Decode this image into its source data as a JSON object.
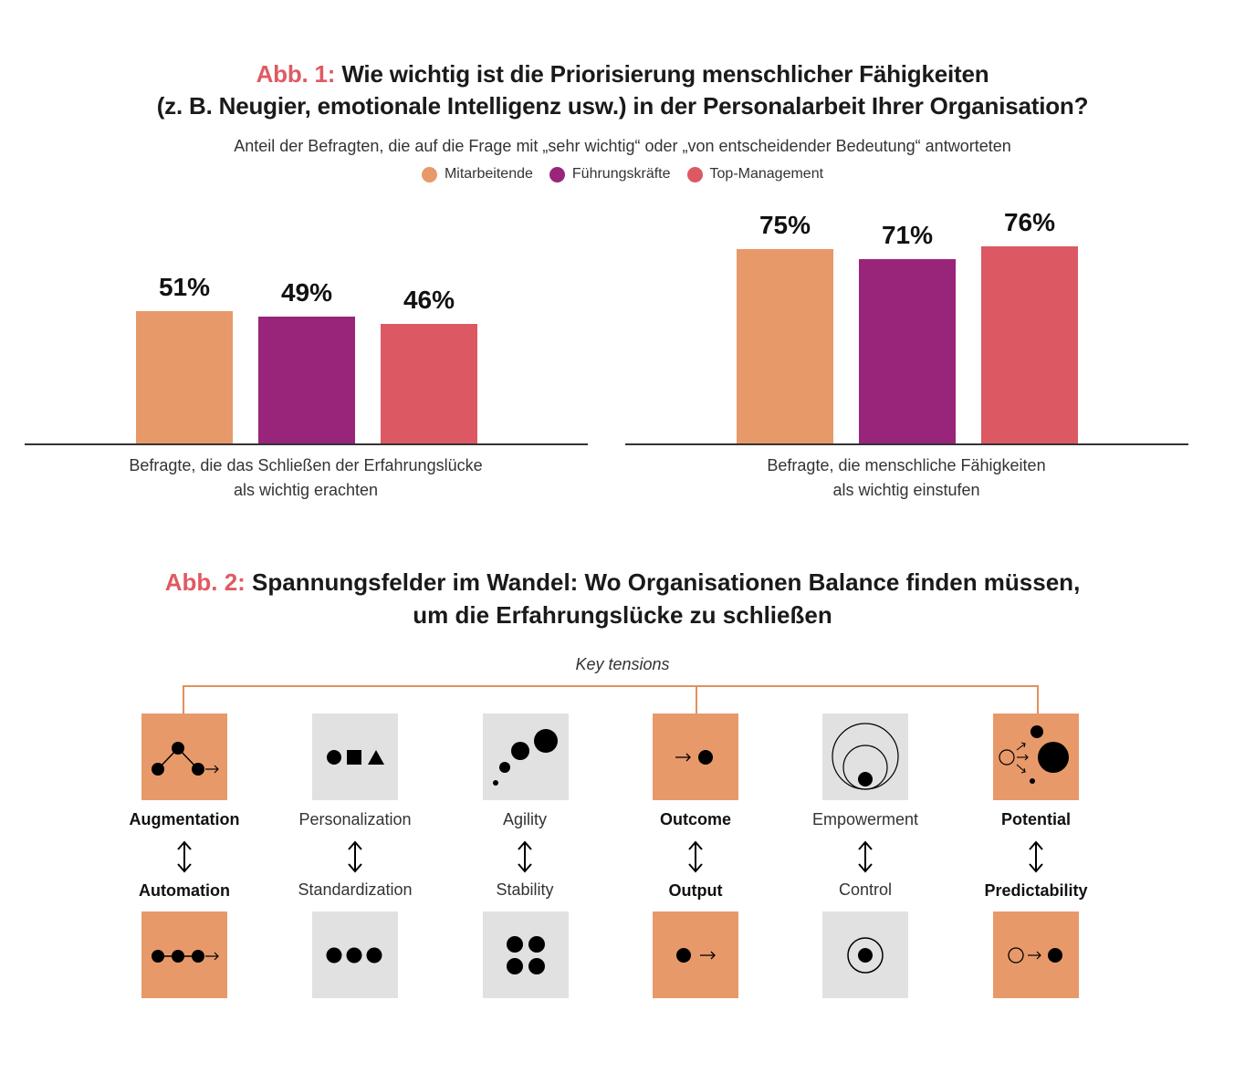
{
  "fig1": {
    "tag": "Abb. 1:",
    "title_line1": "Wie wichtig ist die Priorisierung menschlicher Fähigkeiten",
    "title_line2": "(z. B. Neugier, emotionale Intelligenz usw.) in der Personalarbeit Ihrer Organisation?",
    "subtitle": "Anteil der Befragten, die auf die Frage mit „sehr wichtig“ oder „von entscheidender Bedeutung“ antworteten",
    "legend": [
      {
        "label": "Mitarbeitende",
        "color": "#e8996a"
      },
      {
        "label": "Führungskräfte",
        "color": "#99257a"
      },
      {
        "label": "Top-Management",
        "color": "#dc5964"
      }
    ]
  },
  "chart_data": {
    "type": "bar",
    "title": "Wie wichtig ist die Priorisierung menschlicher Fähigkeiten (z. B. Neugier, emotionale Intelligenz usw.) in der Personalarbeit Ihrer Organisation?",
    "categories": [
      "Befragte, die das Schließen der Erfahrungslücke als wichtig erachten",
      "Befragte, die menschliche Fähigkeiten als wichtig einstufen"
    ],
    "category_lines": [
      [
        "Befragte, die das Schließen der Erfahrungslücke",
        "als wichtig erachten"
      ],
      [
        "Befragte, die menschliche Fähigkeiten",
        "als wichtig einstufen"
      ]
    ],
    "series": [
      {
        "name": "Mitarbeitende",
        "values": [
          51,
          75
        ],
        "labels": [
          "51%",
          "75%"
        ]
      },
      {
        "name": "Führungskräfte",
        "values": [
          49,
          71
        ],
        "labels": [
          "49%",
          "71%"
        ]
      },
      {
        "name": "Top-Management",
        "values": [
          46,
          76
        ],
        "labels": [
          "46%",
          "76%"
        ]
      }
    ],
    "xlabel": "",
    "ylabel": "",
    "ylim": [
      0,
      100
    ]
  },
  "fig2": {
    "tag": "Abb. 2:",
    "title_line1": "Spannungsfelder im Wandel: Wo Organisationen Balance finden müssen,",
    "title_line2": "um die Erfahrungslücke zu schließen",
    "key_label": "Key tensions",
    "pairs": [
      {
        "top": "Augmentation",
        "bottom": "Automation",
        "highlight": true
      },
      {
        "top": "Personalization",
        "bottom": "Standardization",
        "highlight": false
      },
      {
        "top": "Agility",
        "bottom": "Stability",
        "highlight": false
      },
      {
        "top": "Outcome",
        "bottom": "Output",
        "highlight": true
      },
      {
        "top": "Empowerment",
        "bottom": "Control",
        "highlight": false
      },
      {
        "top": "Potential",
        "bottom": "Predictability",
        "highlight": true
      }
    ]
  }
}
